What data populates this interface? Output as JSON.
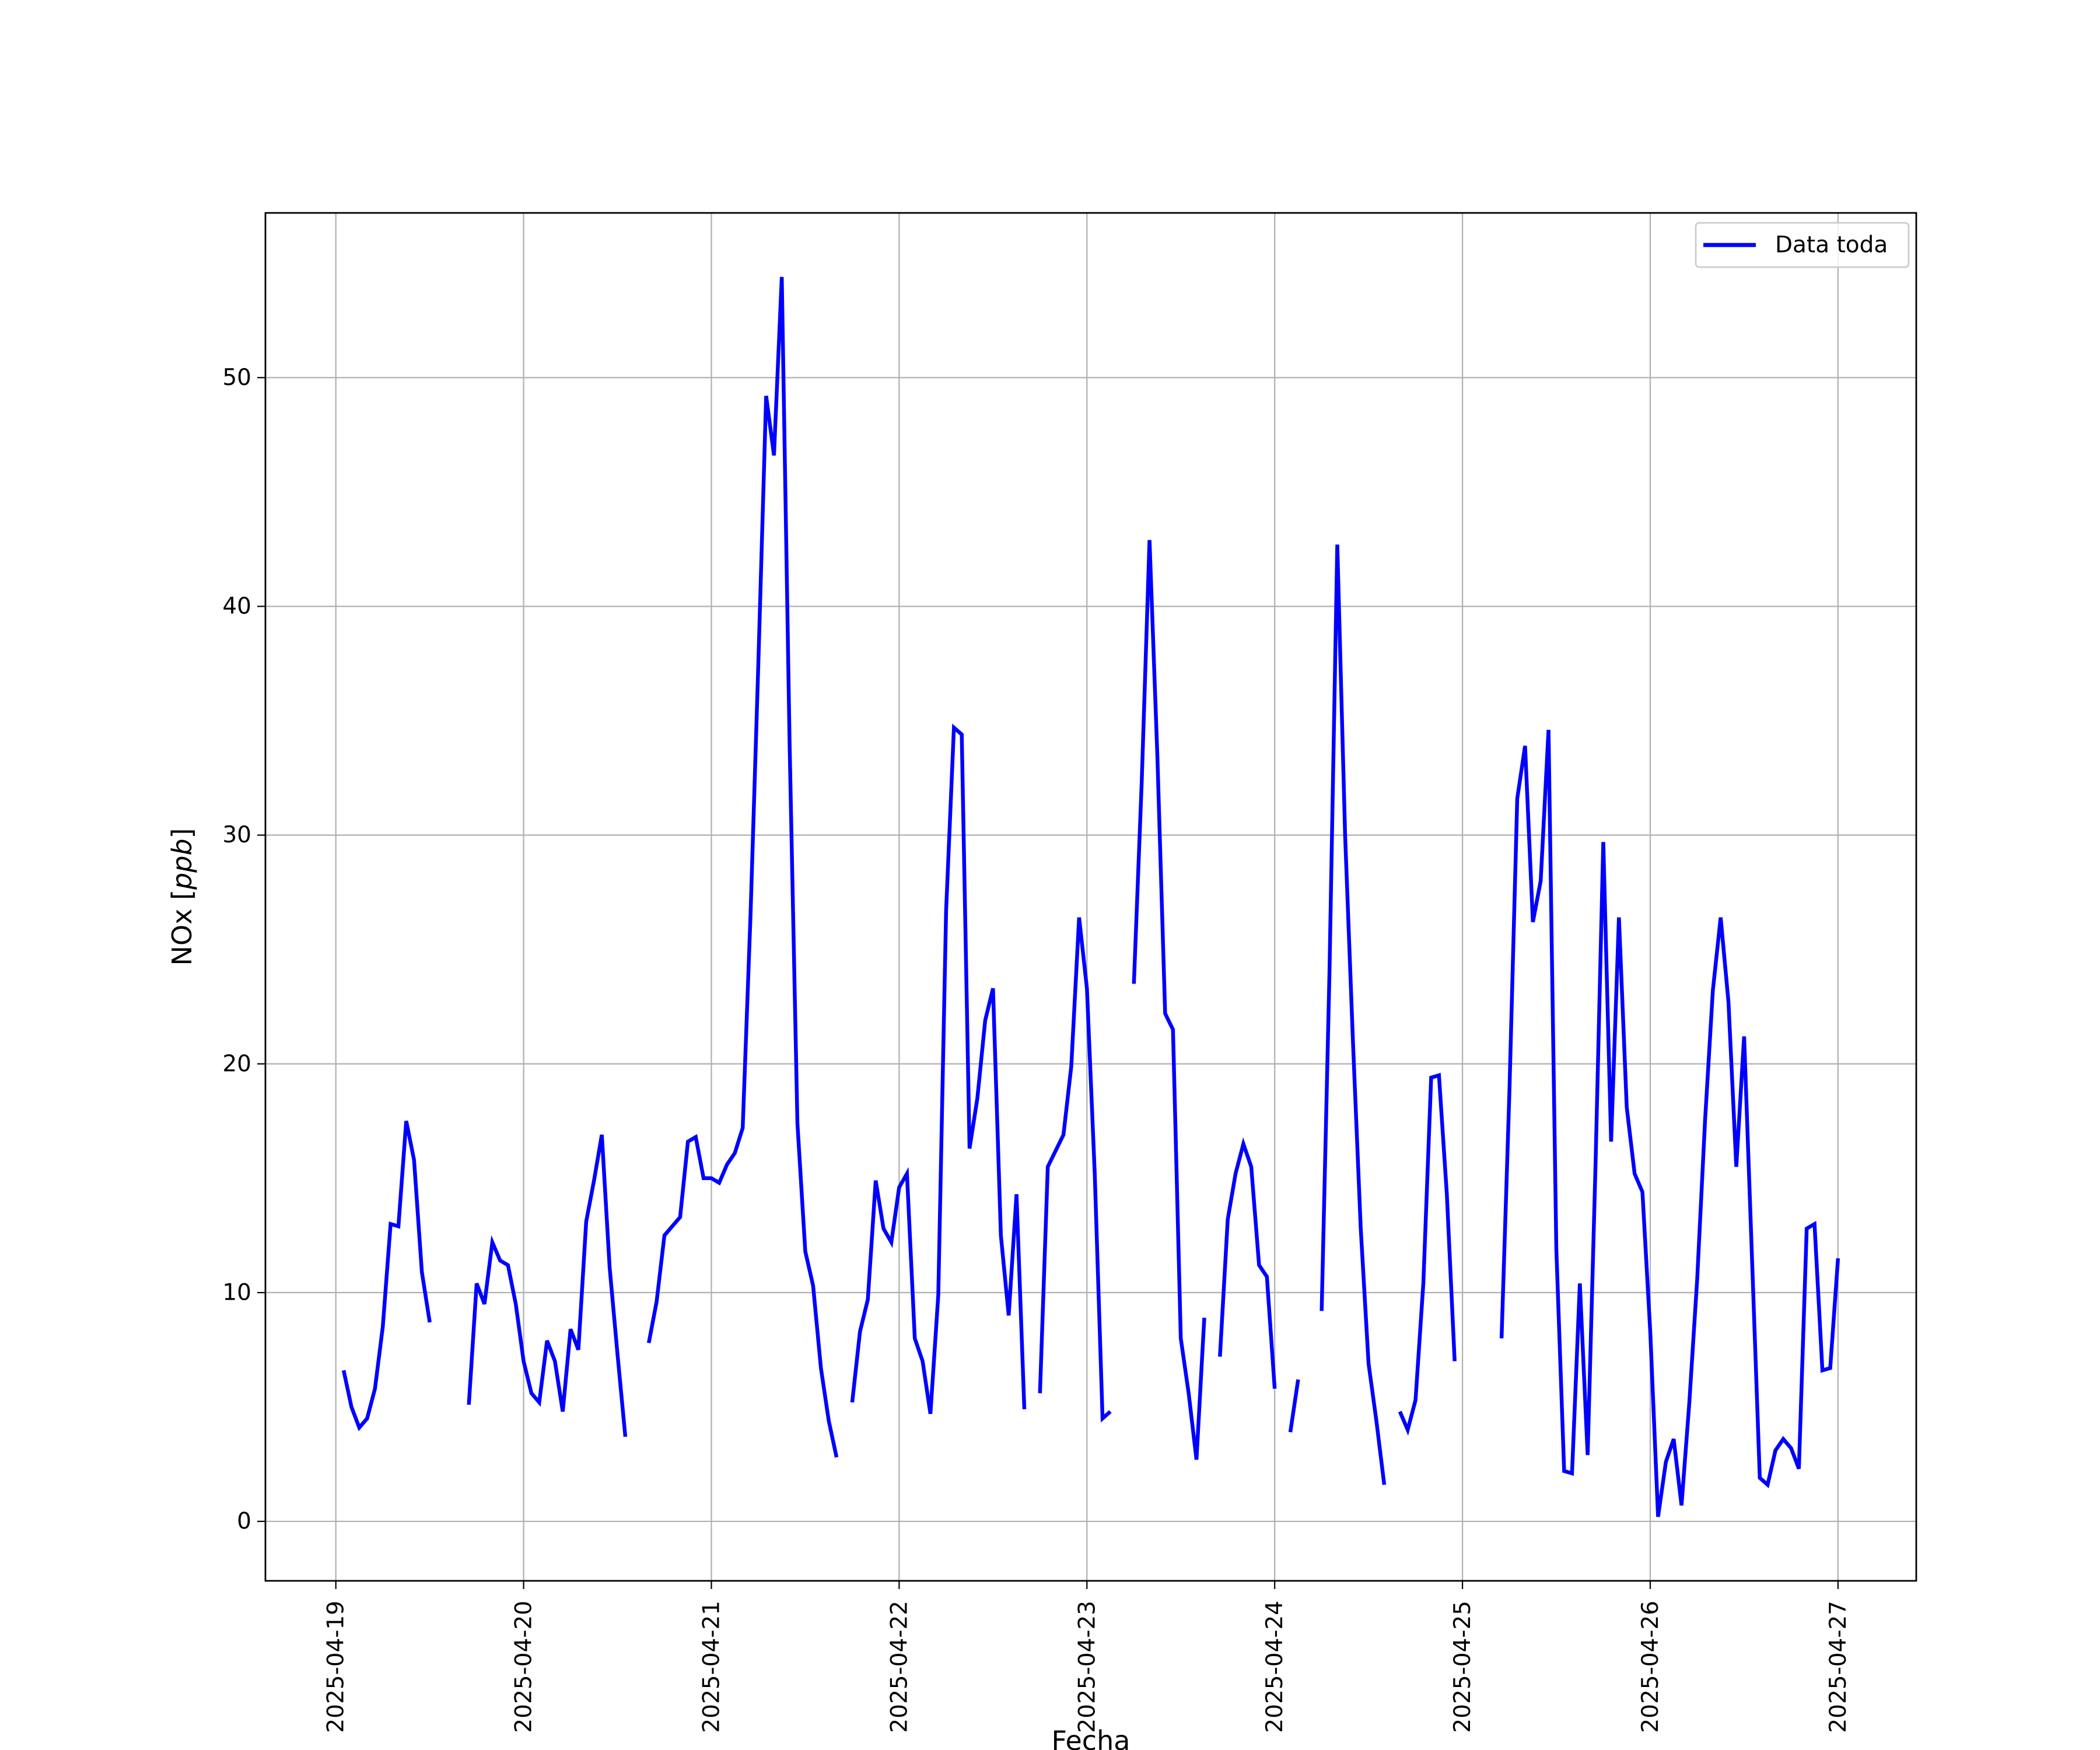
{
  "chart_data": {
    "type": "line",
    "xlabel": "Fecha",
    "ylabel": "NOx [ppb]",
    "ylabel_text": "NOx [",
    "ylabel_unit": "ppb",
    "ylabel_close": "]",
    "xlim": [
      "2025-04-18T15:00",
      "2025-04-27T10:00"
    ],
    "ylim": [
      -2.6,
      57.2
    ],
    "x_ticks": [
      "2025-04-19",
      "2025-04-20",
      "2025-04-21",
      "2025-04-22",
      "2025-04-23",
      "2025-04-24",
      "2025-04-25",
      "2025-04-26",
      "2025-04-27"
    ],
    "y_ticks": [
      0,
      10,
      20,
      30,
      40,
      50
    ],
    "grid": true,
    "legend_position": "top-right",
    "series": [
      {
        "name": "Data toda",
        "color": "#0000ff",
        "points": [
          [
            "2025-04-19T01:00",
            6.6
          ],
          [
            "2025-04-19T02:00",
            5.0
          ],
          [
            "2025-04-19T03:00",
            4.1
          ],
          [
            "2025-04-19T04:00",
            4.5
          ],
          [
            "2025-04-19T05:00",
            5.8
          ],
          [
            "2025-04-19T06:00",
            8.5
          ],
          [
            "2025-04-19T07:00",
            13.0
          ],
          [
            "2025-04-19T08:00",
            12.9
          ],
          [
            "2025-04-19T09:00",
            17.5
          ],
          [
            "2025-04-19T10:00",
            15.8
          ],
          [
            "2025-04-19T11:00",
            10.9
          ],
          [
            "2025-04-19T12:00",
            8.7
          ],
          [
            "2025-04-19T13:00",
            null
          ],
          [
            "2025-04-19T17:00",
            5.1
          ],
          [
            "2025-04-19T18:00",
            10.4
          ],
          [
            "2025-04-19T19:00",
            9.5
          ],
          [
            "2025-04-19T20:00",
            12.2
          ],
          [
            "2025-04-19T21:00",
            11.4
          ],
          [
            "2025-04-19T22:00",
            11.2
          ],
          [
            "2025-04-19T23:00",
            9.5
          ],
          [
            "2025-04-20T00:00",
            7.0
          ],
          [
            "2025-04-20T01:00",
            5.6
          ],
          [
            "2025-04-20T02:00",
            5.2
          ],
          [
            "2025-04-20T03:00",
            7.9
          ],
          [
            "2025-04-20T04:00",
            7.0
          ],
          [
            "2025-04-20T05:00",
            4.8
          ],
          [
            "2025-04-20T06:00",
            8.4
          ],
          [
            "2025-04-20T07:00",
            7.5
          ],
          [
            "2025-04-20T08:00",
            13.1
          ],
          [
            "2025-04-20T09:00",
            14.9
          ],
          [
            "2025-04-20T10:00",
            16.9
          ],
          [
            "2025-04-20T11:00",
            11.1
          ],
          [
            "2025-04-20T12:00",
            7.3
          ],
          [
            "2025-04-20T13:00",
            3.7
          ],
          [
            "2025-04-20T14:00",
            null
          ],
          [
            "2025-04-20T16:00",
            7.8
          ],
          [
            "2025-04-20T17:00",
            9.6
          ],
          [
            "2025-04-20T18:00",
            12.5
          ],
          [
            "2025-04-20T19:00",
            12.9
          ],
          [
            "2025-04-20T20:00",
            13.3
          ],
          [
            "2025-04-20T21:00",
            16.6
          ],
          [
            "2025-04-20T22:00",
            16.8
          ],
          [
            "2025-04-20T23:00",
            15.0
          ],
          [
            "2025-04-21T00:00",
            15.0
          ],
          [
            "2025-04-21T01:00",
            14.8
          ],
          [
            "2025-04-21T02:00",
            15.6
          ],
          [
            "2025-04-21T03:00",
            16.1
          ],
          [
            "2025-04-21T04:00",
            17.2
          ],
          [
            "2025-04-21T05:00",
            26.5
          ],
          [
            "2025-04-21T06:00",
            37.5
          ],
          [
            "2025-04-21T07:00",
            49.2
          ],
          [
            "2025-04-21T08:00",
            46.6
          ],
          [
            "2025-04-21T09:00",
            54.4
          ],
          [
            "2025-04-21T10:00",
            34.0
          ],
          [
            "2025-04-21T11:00",
            17.4
          ],
          [
            "2025-04-21T12:00",
            11.8
          ],
          [
            "2025-04-21T13:00",
            10.3
          ],
          [
            "2025-04-21T14:00",
            6.7
          ],
          [
            "2025-04-21T15:00",
            4.4
          ],
          [
            "2025-04-21T16:00",
            2.8
          ],
          [
            "2025-04-21T17:00",
            null
          ],
          [
            "2025-04-21T18:00",
            5.2
          ],
          [
            "2025-04-21T19:00",
            8.3
          ],
          [
            "2025-04-21T20:00",
            9.7
          ],
          [
            "2025-04-21T21:00",
            14.9
          ],
          [
            "2025-04-21T22:00",
            12.8
          ],
          [
            "2025-04-21T23:00",
            12.2
          ],
          [
            "2025-04-22T00:00",
            14.6
          ],
          [
            "2025-04-22T01:00",
            15.2
          ],
          [
            "2025-04-22T02:00",
            8.0
          ],
          [
            "2025-04-22T03:00",
            7.0
          ],
          [
            "2025-04-22T04:00",
            4.7
          ],
          [
            "2025-04-22T05:00",
            9.9
          ],
          [
            "2025-04-22T06:00",
            26.7
          ],
          [
            "2025-04-22T07:00",
            34.7
          ],
          [
            "2025-04-22T08:00",
            34.4
          ],
          [
            "2025-04-22T09:00",
            16.3
          ],
          [
            "2025-04-22T10:00",
            18.5
          ],
          [
            "2025-04-22T11:00",
            21.9
          ],
          [
            "2025-04-22T12:00",
            23.3
          ],
          [
            "2025-04-22T13:00",
            12.5
          ],
          [
            "2025-04-22T14:00",
            9.0
          ],
          [
            "2025-04-22T15:00",
            14.3
          ],
          [
            "2025-04-22T16:00",
            4.9
          ],
          [
            "2025-04-22T17:00",
            null
          ],
          [
            "2025-04-22T18:00",
            5.6
          ],
          [
            "2025-04-22T19:00",
            15.5
          ],
          [
            "2025-04-22T20:00",
            16.2
          ],
          [
            "2025-04-22T21:00",
            16.9
          ],
          [
            "2025-04-22T22:00",
            19.9
          ],
          [
            "2025-04-22T23:00",
            26.4
          ],
          [
            "2025-04-23T00:00",
            23.3
          ],
          [
            "2025-04-23T01:00",
            15.2
          ],
          [
            "2025-04-23T02:00",
            4.5
          ],
          [
            "2025-04-23T03:00",
            4.8
          ],
          [
            "2025-04-23T04:00",
            null
          ],
          [
            "2025-04-23T06:00",
            23.5
          ],
          [
            "2025-04-23T07:00",
            32.3
          ],
          [
            "2025-04-23T08:00",
            42.9
          ],
          [
            "2025-04-23T09:00",
            33.5
          ],
          [
            "2025-04-23T10:00",
            22.2
          ],
          [
            "2025-04-23T11:00",
            21.5
          ],
          [
            "2025-04-23T12:00",
            8.0
          ],
          [
            "2025-04-23T13:00",
            5.6
          ],
          [
            "2025-04-23T14:00",
            2.7
          ],
          [
            "2025-04-23T15:00",
            8.9
          ],
          [
            "2025-04-23T16:00",
            null
          ],
          [
            "2025-04-23T17:00",
            7.2
          ],
          [
            "2025-04-23T18:00",
            13.2
          ],
          [
            "2025-04-23T19:00",
            15.2
          ],
          [
            "2025-04-23T20:00",
            16.5
          ],
          [
            "2025-04-23T21:00",
            15.5
          ],
          [
            "2025-04-23T22:00",
            11.2
          ],
          [
            "2025-04-23T23:00",
            10.7
          ],
          [
            "2025-04-24T00:00",
            5.8
          ],
          [
            "2025-04-24T01:00",
            null
          ],
          [
            "2025-04-24T02:00",
            3.9
          ],
          [
            "2025-04-24T03:00",
            6.2
          ],
          [
            "2025-04-24T04:00",
            null
          ],
          [
            "2025-04-24T06:00",
            9.2
          ],
          [
            "2025-04-24T07:00",
            24.0
          ],
          [
            "2025-04-24T08:00",
            42.7
          ],
          [
            "2025-04-24T09:00",
            30.0
          ],
          [
            "2025-04-24T10:00",
            21.0
          ],
          [
            "2025-04-24T11:00",
            12.8
          ],
          [
            "2025-04-24T12:00",
            6.9
          ],
          [
            "2025-04-24T13:00",
            4.4
          ],
          [
            "2025-04-24T14:00",
            1.6
          ],
          [
            "2025-04-24T15:00",
            null
          ],
          [
            "2025-04-24T16:00",
            4.8
          ],
          [
            "2025-04-24T17:00",
            4.0
          ],
          [
            "2025-04-24T18:00",
            5.3
          ],
          [
            "2025-04-24T19:00",
            10.4
          ],
          [
            "2025-04-24T20:00",
            19.4
          ],
          [
            "2025-04-24T21:00",
            19.5
          ],
          [
            "2025-04-24T22:00",
            14.3
          ],
          [
            "2025-04-24T23:00",
            7.0
          ],
          [
            "2025-04-25T00:00",
            null
          ],
          [
            "2025-04-25T05:00",
            8.0
          ],
          [
            "2025-04-25T06:00",
            18.8
          ],
          [
            "2025-04-25T07:00",
            31.6
          ],
          [
            "2025-04-25T08:00",
            33.9
          ],
          [
            "2025-04-25T09:00",
            26.2
          ],
          [
            "2025-04-25T10:00",
            28.0
          ],
          [
            "2025-04-25T11:00",
            34.6
          ],
          [
            "2025-04-25T12:00",
            11.9
          ],
          [
            "2025-04-25T13:00",
            2.2
          ],
          [
            "2025-04-25T14:00",
            2.1
          ],
          [
            "2025-04-25T15:00",
            10.4
          ],
          [
            "2025-04-25T16:00",
            2.9
          ],
          [
            "2025-04-25T17:00",
            15.5
          ],
          [
            "2025-04-25T18:00",
            29.7
          ],
          [
            "2025-04-25T19:00",
            16.6
          ],
          [
            "2025-04-25T20:00",
            26.4
          ],
          [
            "2025-04-25T21:00",
            18.1
          ],
          [
            "2025-04-25T22:00",
            15.2
          ],
          [
            "2025-04-25T23:00",
            14.4
          ],
          [
            "2025-04-26T00:00",
            8.3
          ],
          [
            "2025-04-26T01:00",
            0.2
          ],
          [
            "2025-04-26T02:00",
            2.6
          ],
          [
            "2025-04-26T03:00",
            3.6
          ],
          [
            "2025-04-26T04:00",
            0.7
          ],
          [
            "2025-04-26T05:00",
            5.2
          ],
          [
            "2025-04-26T06:00",
            10.6
          ],
          [
            "2025-04-26T07:00",
            17.5
          ],
          [
            "2025-04-26T08:00",
            23.2
          ],
          [
            "2025-04-26T09:00",
            26.4
          ],
          [
            "2025-04-26T10:00",
            22.7
          ],
          [
            "2025-04-26T11:00",
            15.5
          ],
          [
            "2025-04-26T12:00",
            21.2
          ],
          [
            "2025-04-26T13:00",
            11.6
          ],
          [
            "2025-04-26T14:00",
            1.9
          ],
          [
            "2025-04-26T15:00",
            1.6
          ],
          [
            "2025-04-26T16:00",
            3.1
          ],
          [
            "2025-04-26T17:00",
            3.6
          ],
          [
            "2025-04-26T18:00",
            3.2
          ],
          [
            "2025-04-26T19:00",
            2.3
          ],
          [
            "2025-04-26T20:00",
            12.8
          ],
          [
            "2025-04-26T21:00",
            13.0
          ],
          [
            "2025-04-26T22:00",
            6.6
          ],
          [
            "2025-04-26T23:00",
            6.7
          ],
          [
            "2025-04-27T00:00",
            11.5
          ]
        ]
      }
    ]
  }
}
